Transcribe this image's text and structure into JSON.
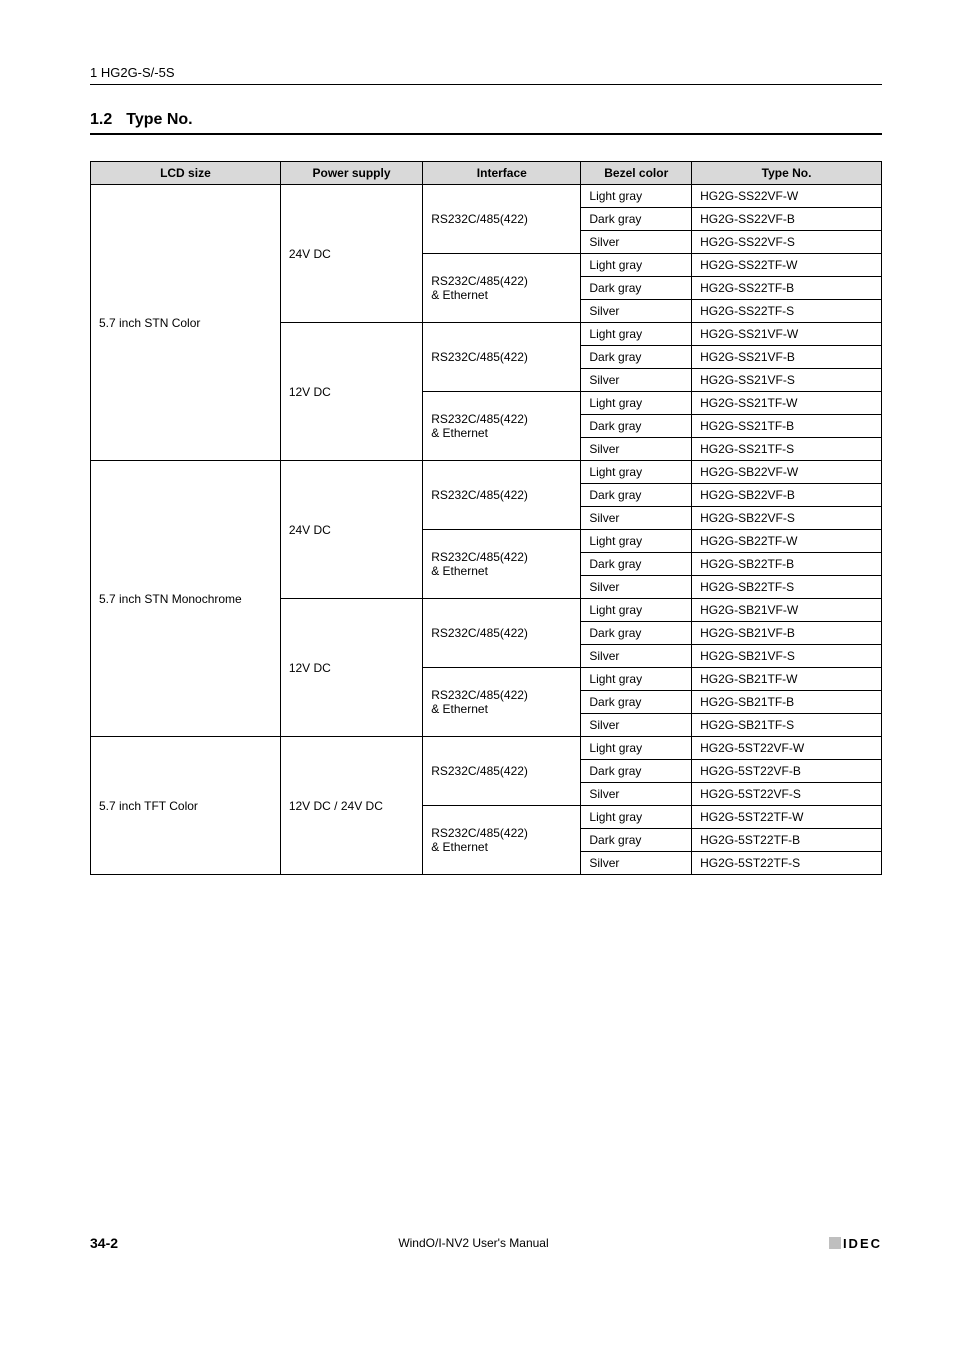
{
  "header": {
    "text": "1 HG2G-S/-5S"
  },
  "section": {
    "number": "1.2",
    "title": "Type No."
  },
  "table": {
    "headers": {
      "lcd": "LCD size",
      "ps": "Power supply",
      "if": "Interface",
      "bc": "Bezel color",
      "tn": "Type No."
    },
    "model_prefix": "HG2G-",
    "suffixes": {
      "ss22vf_w": "SS22VF-W",
      "ss22vf_b": "SS22VF-B",
      "ss22vf_s": "SS22VF-S",
      "ss22tf_w": "SS22TF-W",
      "ss22tf_b": "SS22TF-B",
      "ss22tf_s": "SS22TF-S",
      "ss21vf_w": "SS21VF-W",
      "ss21vf_b": "SS21VF-B",
      "ss21vf_s": "SS21VF-S",
      "ss21tf_w": "SS21TF-W",
      "ss21tf_b": "SS21TF-B",
      "ss21tf_s": "SS21TF-S",
      "sb22vf_w": "SB22VF-W",
      "sb22vf_b": "SB22VF-B",
      "sb22vf_s": "SB22VF-S",
      "sb22tf_w": "SB22TF-W",
      "sb22tf_b": "SB22TF-B",
      "sb22tf_s": "SB22TF-S",
      "sb21vf_w": "SB21VF-W",
      "sb21vf_b": "SB21VF-B",
      "sb21vf_s": "SB21VF-S",
      "sb21tf_w": "SB21TF-W",
      "sb21tf_b": "SB21TF-B",
      "sb21tf_s": "SB21TF-S",
      "5st22vf_w": "5ST22VF-W",
      "5st22vf_b": "5ST22VF-B",
      "5st22vf_s": "5ST22VF-S",
      "5st22tf_w": "5ST22TF-W",
      "5st22tf_b": "5ST22TF-B",
      "5st22tf_s": "5ST22TF-S"
    },
    "lcd_sizes": {
      "stn_color": "5.7 inch STN Color",
      "stn_mono": "5.7 inch STN Monochrome",
      "tft_color": "5.7 inch TFT Color"
    },
    "power_supplies": {
      "v24": "24V DC",
      "v12": "12V DC",
      "v12_24": "12V DC / 24V DC"
    },
    "interfaces": {
      "rs": "RS232C/485(422)",
      "rs_eth_l1": "RS232C/485(422)",
      "rs_eth_l2": "& Ethernet"
    },
    "bezel": {
      "light_gray": "Light gray",
      "dark_gray": "Dark gray",
      "silver": "Silver"
    }
  },
  "footer": {
    "page": "34-2",
    "center": "WindO/I-NV2 User's Manual",
    "brand": "IDEC"
  },
  "colors": {
    "header_bg": "#d9d9d9",
    "border": "#000000",
    "text": "#000000",
    "idec_square": "#bfbfbf"
  },
  "typography": {
    "body_font": "Arial, Helvetica, sans-serif",
    "header_font_size": 13,
    "section_font_size": 16,
    "table_font_size": 12,
    "footer_font_size": 12
  }
}
